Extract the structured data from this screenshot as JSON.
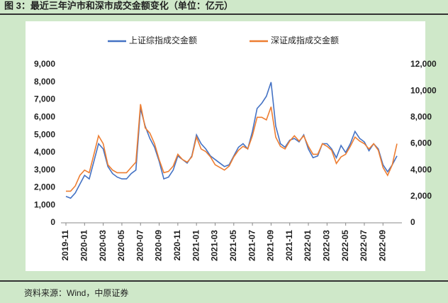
{
  "chart_data": {
    "type": "line",
    "title": "图 3：最近三年沪市和深市成交金额变化（单位：亿元）",
    "source": "资料来源：Wind，中原证券",
    "categories": [
      "2019-11",
      null,
      null,
      null,
      "2020-01",
      null,
      null,
      null,
      "2020-03",
      null,
      null,
      null,
      "2020-05",
      null,
      null,
      null,
      "2020-07",
      null,
      null,
      null,
      "2020-09",
      null,
      null,
      null,
      "2020-11",
      null,
      null,
      null,
      "2021-01",
      null,
      null,
      null,
      "2021-03",
      null,
      null,
      null,
      "2021-05",
      null,
      null,
      null,
      "2021-07",
      null,
      null,
      null,
      "2021-09",
      null,
      null,
      null,
      "2021-11",
      null,
      null,
      null,
      "2022-01",
      null,
      null,
      null,
      "2022-03",
      null,
      null,
      null,
      "2022-05",
      null,
      null,
      null,
      "2022-07",
      null,
      null,
      null,
      "2022-09",
      null,
      null,
      null
    ],
    "series": [
      {
        "name": "上证综指成交金额",
        "color": "#4472c4",
        "axis": "y",
        "values": [
          1500,
          1400,
          1700,
          2200,
          2700,
          2500,
          3500,
          4500,
          4200,
          3200,
          2800,
          2600,
          2500,
          2500,
          2800,
          3000,
          6500,
          5500,
          4800,
          4300,
          3500,
          2500,
          2600,
          3000,
          3800,
          3600,
          3400,
          3800,
          5000,
          4500,
          4200,
          3800,
          3600,
          3400,
          3200,
          3300,
          3800,
          4300,
          4500,
          4200,
          5200,
          6500,
          6800,
          7200,
          8000,
          5500,
          4500,
          4300,
          4700,
          4800,
          4600,
          5000,
          4200,
          3700,
          3800,
          4500,
          4500,
          4200,
          3700,
          4400,
          4000,
          4500,
          5200,
          4800,
          4600,
          4100,
          4500,
          4200,
          3300,
          2900,
          3300,
          3800
        ]
      },
      {
        "name": "深证成指成交金额",
        "color": "#ed7d31",
        "axis": "y2",
        "values": [
          2400,
          2400,
          2800,
          3600,
          4000,
          3800,
          5200,
          6600,
          6000,
          4400,
          4000,
          3800,
          3800,
          3800,
          4200,
          4600,
          9000,
          7200,
          6800,
          6000,
          4800,
          3800,
          3900,
          4300,
          5200,
          4800,
          4600,
          5000,
          6500,
          5600,
          5400,
          5000,
          4400,
          4200,
          4000,
          4300,
          5000,
          5500,
          5800,
          5600,
          6600,
          8000,
          8000,
          7800,
          8800,
          6500,
          5800,
          5600,
          6200,
          6600,
          6200,
          6600,
          5800,
          5200,
          5200,
          6000,
          5800,
          5500,
          4500,
          5000,
          5200,
          5800,
          6500,
          6200,
          6000,
          5600,
          6000,
          5500,
          4200,
          3600,
          4400,
          6000
        ]
      }
    ],
    "ylim": [
      0,
      9000
    ],
    "yticks": [
      0,
      {
        "value": 1000,
        "label": "1,000"
      },
      {
        "value": 2000,
        "label": "2,000"
      },
      {
        "value": 3000,
        "label": "3,000"
      },
      {
        "value": 4000,
        "label": "4,000"
      },
      {
        "value": 5000,
        "label": "5,000"
      },
      {
        "value": 6000,
        "label": "6,000"
      },
      {
        "value": 7000,
        "label": "7,000"
      },
      {
        "value": 8000,
        "label": "8,000"
      },
      {
        "value": 9000,
        "label": "9,000"
      }
    ],
    "y2lim": [
      0,
      12000
    ],
    "y2ticks": [
      0,
      {
        "value": 2000,
        "label": "2,000"
      },
      {
        "value": 4000,
        "label": "4,000"
      },
      {
        "value": 6000,
        "label": "6,000"
      },
      {
        "value": 8000,
        "label": "8,000"
      },
      {
        "value": 10000,
        "label": "10,000"
      },
      {
        "value": 12000,
        "label": "12,000"
      }
    ],
    "grid": false,
    "legend": "top"
  }
}
